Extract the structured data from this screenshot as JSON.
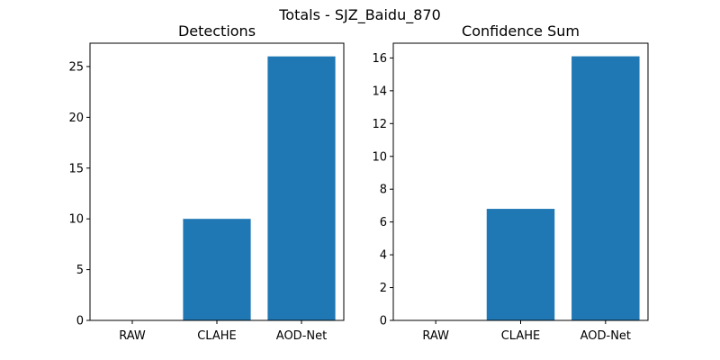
{
  "figure": {
    "suptitle": "Totals - SJZ_Baidu_870"
  },
  "chart_data": [
    {
      "type": "bar",
      "title": "Detections",
      "xlabel": "",
      "ylabel": "",
      "categories": [
        "RAW",
        "CLAHE",
        "AOD-Net"
      ],
      "values": [
        0,
        10,
        26
      ],
      "ylim": [
        0,
        27.3
      ],
      "yticks": [
        0,
        5,
        10,
        15,
        20,
        25
      ],
      "ytick_labels": [
        "0",
        "5",
        "10",
        "15",
        "20",
        "25"
      ],
      "grid": false,
      "bar_color": "#1f77b4"
    },
    {
      "type": "bar",
      "title": "Confidence Sum",
      "xlabel": "",
      "ylabel": "",
      "categories": [
        "RAW",
        "CLAHE",
        "AOD-Net"
      ],
      "values": [
        0,
        6.8,
        16.1
      ],
      "ylim": [
        0,
        16.9
      ],
      "yticks": [
        0,
        2,
        4,
        6,
        8,
        10,
        12,
        14,
        16
      ],
      "ytick_labels": [
        "0",
        "2",
        "4",
        "6",
        "8",
        "10",
        "12",
        "14",
        "16"
      ],
      "grid": false,
      "bar_color": "#1f77b4"
    }
  ]
}
